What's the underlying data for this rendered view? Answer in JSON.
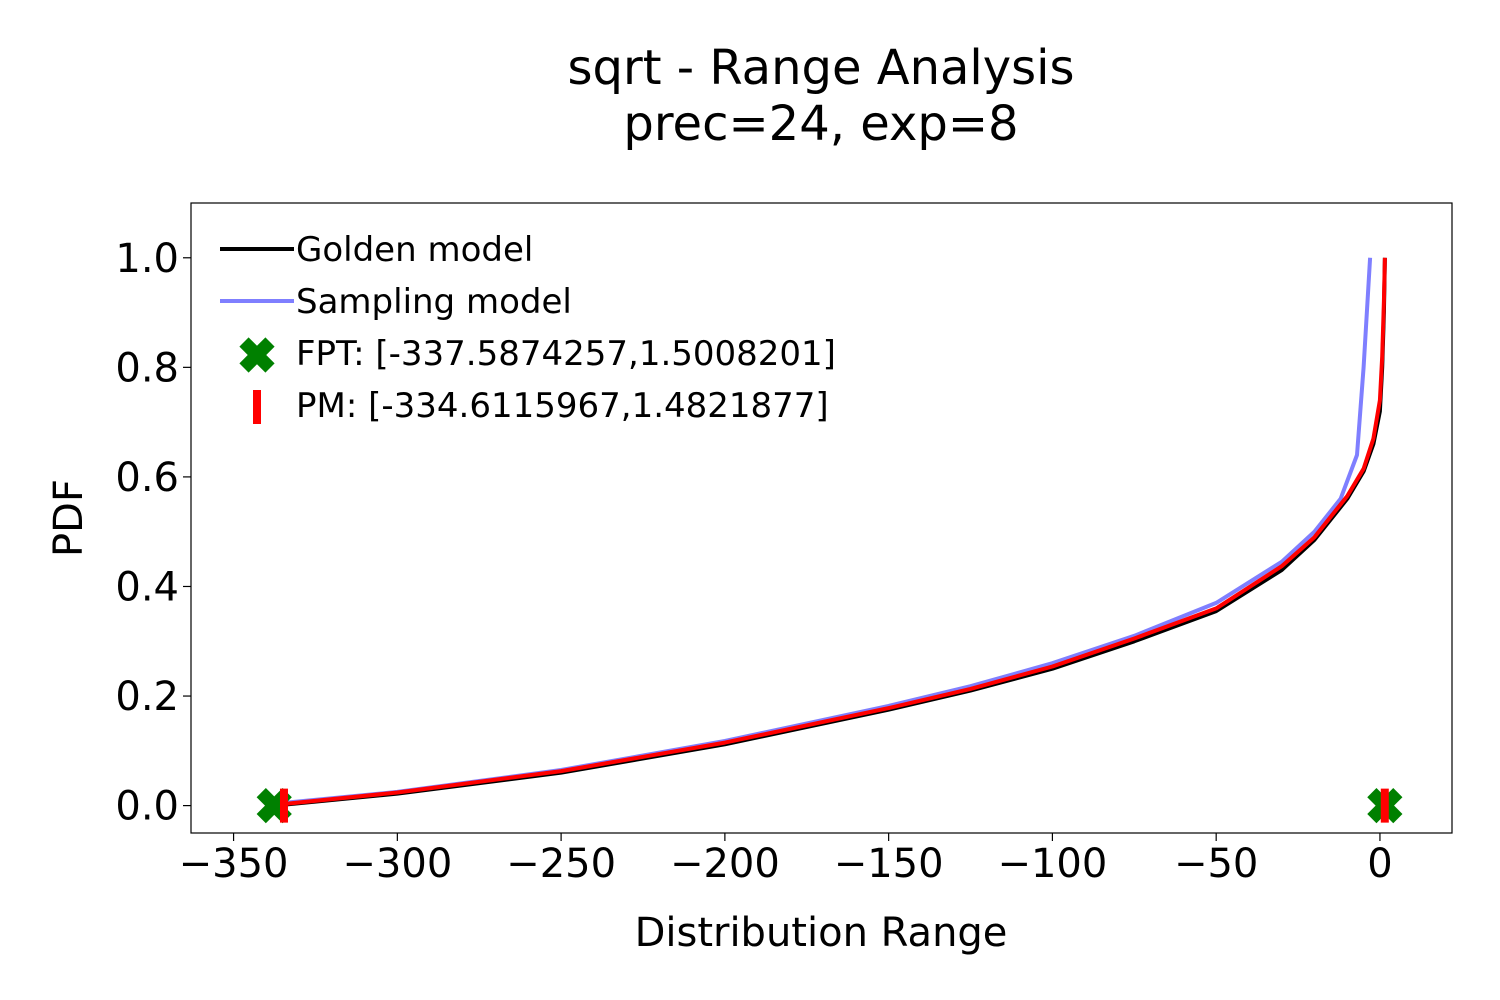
{
  "chart_data": {
    "type": "line",
    "title_lines": [
      "sqrt - Range Analysis",
      "prec=24, exp=8"
    ],
    "xlabel": "Distribution Range",
    "ylabel": "PDF",
    "xlim": [
      -363,
      22
    ],
    "ylim": [
      -0.05,
      1.1
    ],
    "x_ticks": [
      -350,
      -300,
      -250,
      -200,
      -150,
      -100,
      -50,
      0
    ],
    "x_tick_labels": [
      "−350",
      "−300",
      "−250",
      "−200",
      "−150",
      "−100",
      "−50",
      "0"
    ],
    "y_ticks": [
      0.0,
      0.2,
      0.4,
      0.6,
      0.8,
      1.0
    ],
    "y_tick_labels": [
      "0.0",
      "0.2",
      "0.4",
      "0.6",
      "0.8",
      "1.0"
    ],
    "grid": false,
    "legend_position": "top-left",
    "series": [
      {
        "name": "Golden model",
        "kind": "line",
        "color": "#000000",
        "points": [
          [
            -337.6,
            0.0
          ],
          [
            -300,
            0.022
          ],
          [
            -250,
            0.06
          ],
          [
            -200,
            0.112
          ],
          [
            -150,
            0.175
          ],
          [
            -125,
            0.21
          ],
          [
            -100,
            0.25
          ],
          [
            -75,
            0.3
          ],
          [
            -50,
            0.355
          ],
          [
            -30,
            0.43
          ],
          [
            -20,
            0.485
          ],
          [
            -10,
            0.56
          ],
          [
            -5,
            0.61
          ],
          [
            -2,
            0.66
          ],
          [
            0,
            0.72
          ],
          [
            0.7,
            0.8
          ],
          [
            1.2,
            0.9
          ],
          [
            1.5,
            1.0
          ]
        ]
      },
      {
        "name": "Sampling model",
        "kind": "line",
        "color": "#7f7fff",
        "points": [
          [
            -334.6,
            0.005
          ],
          [
            -300,
            0.025
          ],
          [
            -250,
            0.065
          ],
          [
            -200,
            0.118
          ],
          [
            -150,
            0.182
          ],
          [
            -125,
            0.218
          ],
          [
            -100,
            0.26
          ],
          [
            -75,
            0.31
          ],
          [
            -50,
            0.37
          ],
          [
            -30,
            0.445
          ],
          [
            -20,
            0.5
          ],
          [
            -12,
            0.56
          ],
          [
            -7,
            0.64
          ],
          [
            -5,
            0.8
          ],
          [
            -3,
            1.0
          ]
        ]
      },
      {
        "name": "red-curve",
        "kind": "line",
        "color": "#ff0000",
        "points": [
          [
            -334.6,
            0.003
          ],
          [
            -300,
            0.024
          ],
          [
            -250,
            0.063
          ],
          [
            -200,
            0.115
          ],
          [
            -150,
            0.178
          ],
          [
            -125,
            0.213
          ],
          [
            -100,
            0.254
          ],
          [
            -75,
            0.305
          ],
          [
            -50,
            0.36
          ],
          [
            -30,
            0.437
          ],
          [
            -20,
            0.49
          ],
          [
            -10,
            0.565
          ],
          [
            -5,
            0.615
          ],
          [
            -2,
            0.67
          ],
          [
            0,
            0.74
          ],
          [
            0.7,
            0.82
          ],
          [
            1.2,
            0.92
          ],
          [
            1.5,
            1.0
          ]
        ]
      },
      {
        "name": "FPT: [-337.5874257,1.5008201]",
        "kind": "marker-x",
        "color": "#008000",
        "points": [
          [
            -337.5874257,
            0.0
          ],
          [
            1.5008201,
            0.0
          ]
        ]
      },
      {
        "name": "PM: [-334.6115967,1.4821877]",
        "kind": "marker-vline",
        "color": "#ff0000",
        "points": [
          [
            -334.6115967,
            0.0
          ],
          [
            1.4821877,
            0.0
          ]
        ]
      }
    ],
    "legend_entries": [
      {
        "label": "Golden model",
        "symbol": "line",
        "color": "#000000"
      },
      {
        "label": "Sampling model",
        "symbol": "line",
        "color": "#7f7fff"
      },
      {
        "label": "FPT: [-337.5874257,1.5008201]",
        "symbol": "marker-x",
        "color": "#008000"
      },
      {
        "label": "PM: [-334.6115967,1.4821877]",
        "symbol": "marker-vline",
        "color": "#ff0000"
      }
    ]
  }
}
